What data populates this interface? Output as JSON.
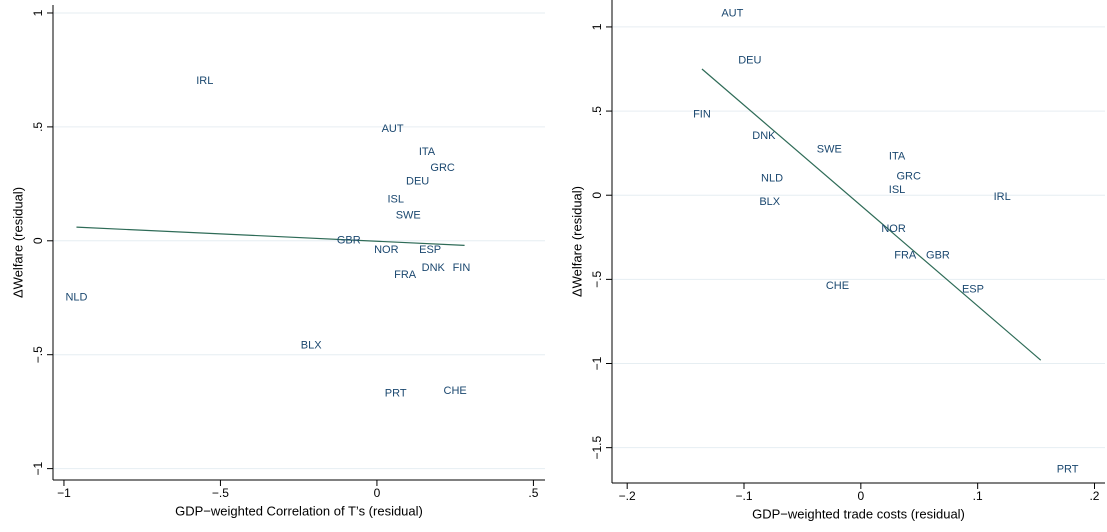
{
  "chart_data": [
    {
      "type": "scatter",
      "xlabel": "GDP−weighted Correlation of T’s (residual)",
      "ylabel": "ΔWelfare (residual)",
      "color": "#1a476f",
      "line_color": "#2e6b57",
      "grid": true,
      "xlim": [
        -1.035,
        0.537
      ],
      "ylim": [
        -1.05,
        1.035
      ],
      "xticks": [
        {
          "value": -1,
          "label": "−1"
        },
        {
          "value": -0.5,
          "label": "−.5"
        },
        0,
        {
          "value": 0.5,
          "label": ".5"
        }
      ],
      "yticks": [
        {
          "value": -1,
          "label": "−1"
        },
        {
          "value": -0.5,
          "label": "−.5"
        },
        0,
        {
          "value": 0.5,
          "label": ".5"
        },
        1
      ],
      "points": {
        "labels": [
          "IRL",
          "AUT",
          "ITA",
          "GRC",
          "DEU",
          "ISL",
          "SWE",
          "GBR",
          "NOR",
          "ESP",
          "DNK",
          "FIN",
          "FRA",
          "NLD",
          "BLX",
          "PRT",
          "CHE"
        ],
        "x": [
          -0.55,
          0.05,
          0.16,
          0.21,
          0.13,
          0.06,
          0.1,
          -0.09,
          0.03,
          0.17,
          0.18,
          0.27,
          0.09,
          -0.96,
          -0.21,
          0.06,
          0.25
        ],
        "y": [
          0.7,
          0.49,
          0.39,
          0.32,
          0.26,
          0.18,
          0.11,
          0,
          -0.04,
          -0.04,
          -0.12,
          -0.12,
          -0.15,
          -0.25,
          -0.46,
          -0.67,
          -0.66
        ]
      },
      "fit_line": {
        "x": [
          -0.96,
          0.28
        ],
        "y": [
          0.06,
          -0.02
        ]
      }
    },
    {
      "type": "scatter",
      "xlabel": "GDP−weighted trade costs (residual)",
      "ylabel": "ΔWelfare (residual)",
      "color": "#1a476f",
      "line_color": "#2e6b57",
      "grid": true,
      "xlim": [
        -0.213,
        0.209
      ],
      "ylim": [
        -1.71,
        1.16
      ],
      "xticks": [
        {
          "value": -0.2,
          "label": "−.2"
        },
        {
          "value": -0.1,
          "label": "−.1"
        },
        0,
        {
          "value": 0.1,
          "label": ".1"
        },
        {
          "value": 0.2,
          "label": ".2"
        }
      ],
      "yticks": [
        {
          "value": -1.5,
          "label": "−1.5"
        },
        {
          "value": -1,
          "label": "−1"
        },
        {
          "value": -0.5,
          "label": "−.5"
        },
        0,
        {
          "value": 0.5,
          "label": ".5"
        },
        1
      ],
      "points": {
        "labels": [
          "AUT",
          "DEU",
          "FIN",
          "DNK",
          "SWE",
          "ITA",
          "NLD",
          "GRC",
          "ISL",
          "IRL",
          "BLX",
          "NOR",
          "FRA",
          "GBR",
          "CHE",
          "ESP",
          "PRT"
        ],
        "x": [
          -0.11,
          -0.095,
          -0.136,
          -0.083,
          -0.027,
          0.031,
          -0.076,
          0.041,
          0.031,
          0.121,
          -0.078,
          0.028,
          0.038,
          0.066,
          -0.02,
          0.096,
          0.177
        ],
        "y": [
          1.08,
          0.8,
          0.48,
          0.35,
          0.27,
          0.23,
          0.1,
          0.11,
          0.03,
          -0.01,
          -0.04,
          -0.2,
          -0.36,
          -0.36,
          -0.54,
          -0.56,
          -1.63
        ]
      },
      "fit_line": {
        "x": [
          -0.136,
          0.154
        ],
        "y": [
          0.75,
          -0.98
        ]
      }
    }
  ]
}
